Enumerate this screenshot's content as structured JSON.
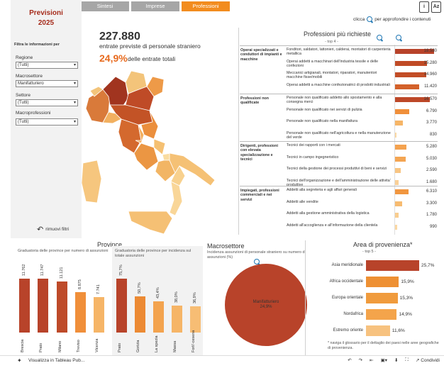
{
  "tabs": [
    {
      "label": "Sintesi",
      "active": false
    },
    {
      "label": "Imprese",
      "active": false
    },
    {
      "label": "Professioni",
      "active": true
    }
  ],
  "header_icons": [
    "info-icon",
    "glossary-icon"
  ],
  "hint": {
    "left": "clicca",
    "right": "per approfondire i contenuti"
  },
  "sidebar": {
    "title": "Previsioni",
    "year": "2025",
    "filter_heading": "Filtra le informazioni per",
    "filters": [
      {
        "label": "Regione",
        "value": "(Tutti)"
      },
      {
        "label": "Macrosettore",
        "value": "Manifatturiero"
      },
      {
        "label": "Settore",
        "value": "(Tutti)"
      },
      {
        "label": "Macroprofessioni",
        "value": "(Tutti)"
      }
    ],
    "reset_label": "rimuovi filtri"
  },
  "headline": {
    "total": "227.880",
    "total_label": "entrate previste di personale straniero",
    "share": "24,9%",
    "share_label": "delle entrate totali"
  },
  "professioni": {
    "title": "Professioni più richieste",
    "subtitle": "- top 4 -",
    "max": 18580,
    "groups": [
      {
        "name": "Operai specializzati e conduttori di impianti e macchine",
        "rows": [
          {
            "label": "Fonditori, saldatori, lattonieri, calderai, montatori di carpenteria metallica",
            "value": 18580,
            "display": "18.580",
            "color": "#b8432a"
          },
          {
            "label": "Operai addetti a macchinari dell'industria tessile e delle confezioni",
            "value": 15280,
            "display": "15.280",
            "color": "#c04b26"
          },
          {
            "label": "Meccanici artigianali, montatori, riparatori, manutentori macchine fisse/mobili",
            "value": 14960,
            "display": "14.960",
            "color": "#c24d26"
          },
          {
            "label": "Operai addetti a macchine confezionatrici di prodotti industriali",
            "value": 11420,
            "display": "11.420",
            "color": "#d3612a"
          }
        ]
      },
      {
        "name": "Professioni non qualificate",
        "rows": [
          {
            "label": "Personale non qualificato addetto allo spostamento e alla consegna merci",
            "value": 16570,
            "display": "16.570",
            "color": "#bd4828"
          },
          {
            "label": "Personale non qualificato nei servizi di pulizia",
            "value": 6790,
            "display": "6.790",
            "color": "#f08f3a"
          },
          {
            "label": "Personale non qualificato nella manifattura",
            "value": 3770,
            "display": "3.770",
            "color": "#f6b567"
          },
          {
            "label": "Personale non qualificato nell'agricoltura e nella manutenzione del verde",
            "value": 830,
            "display": "830",
            "color": "#fbd9a5"
          }
        ]
      },
      {
        "name": "Dirigenti, professioni con elevata specializzazione e tecnici",
        "rows": [
          {
            "label": "Tecnici dei rapporti con i mercati",
            "value": 5280,
            "display": "5.280",
            "color": "#f4a24f"
          },
          {
            "label": "Tecnici in campo ingegneristico",
            "value": 5030,
            "display": "5.030",
            "color": "#f4a552"
          },
          {
            "label": "Tecnici della gestione dei processi produttivi di beni e servizi",
            "value": 2590,
            "display": "2.590",
            "color": "#f8c582"
          },
          {
            "label": "Tecnici dell'organizzazione e dell'amministrazione delle attivita' produttive",
            "value": 1680,
            "display": "1.680",
            "color": "#fad0970"
          }
        ]
      },
      {
        "name": "Impiegati, professioni commerciali e nei servizi",
        "rows": [
          {
            "label": "Addetti alla segreteria e agli affari generali",
            "value": 6310,
            "display": "6.310",
            "color": "#f1963f"
          },
          {
            "label": "Addetti alle vendite",
            "value": 3300,
            "display": "3.300",
            "color": "#f7bb70"
          },
          {
            "label": "Addetti alla gestione amministrativa della logistica",
            "value": 1780,
            "display": "1.780",
            "color": "#f9cd8f"
          },
          {
            "label": "Addetti all'accoglienza e all'informazione della clientela",
            "value": 990,
            "display": "990",
            "color": "#fbd8a3"
          }
        ]
      }
    ]
  },
  "province": {
    "title": "Province",
    "left_subtitle": "Graduatoria delle province per numero di assunzioni",
    "right_subtitle": "Graduatoria delle province per incidenza sul totale assunzioni",
    "chart_data": [
      {
        "type": "bar",
        "categories": [
          "Brescia",
          "Prato",
          "Milano",
          "Treviso",
          "Vicenza"
        ],
        "values": [
          11762,
          11747,
          11121,
          8875,
          7741
        ],
        "labels": [
          "11.762",
          "11.747",
          "11.121",
          "8.875",
          "7.741"
        ],
        "colors": [
          "#b8432a",
          "#b8432a",
          "#be4a29",
          "#f08f3a",
          "#f6b567"
        ]
      },
      {
        "type": "bar",
        "categories": [
          "Prato",
          "Gorizia",
          "La spezia",
          "Massa",
          "Forli'-cesena"
        ],
        "values": [
          75.7,
          50.7,
          43.4,
          38.0,
          36.9
        ],
        "labels": [
          "75,7%",
          "50,7%",
          "43,4%",
          "38,0%",
          "36,9%"
        ],
        "colors": [
          "#b8432a",
          "#ec8a34",
          "#f3a34e",
          "#f6b567",
          "#f7bd74"
        ]
      }
    ]
  },
  "macrosettore": {
    "title": "Macrosettore",
    "subtitle": "Incidenza assunzioni di personale straniero su numero di assunzioni (%)",
    "chart_data": {
      "type": "pie",
      "slices": [
        {
          "name": "Manifatturiero",
          "value": 24.9,
          "label": "24,9%"
        }
      ],
      "color": "#b8432a"
    }
  },
  "area": {
    "title": "Area di provenienza*",
    "subtitle": "- top 5 -",
    "note": "* naviga il glossario per il dettaglio dei paesi nelle aree geografiche di provenienza.",
    "chart_data": {
      "type": "bar",
      "orientation": "horizontal",
      "categories": [
        "Asia meridionale",
        "Africa occidentale",
        "Europa orientale",
        "Nordafrica",
        "Estremo oriente"
      ],
      "values": [
        25.7,
        15.9,
        15.3,
        14.9,
        11.6
      ],
      "labels": [
        "25,7%",
        "15,9%",
        "15,3%",
        "14,9%",
        "11,6%"
      ],
      "colors": [
        "#b8432a",
        "#ee9033",
        "#f09b3d",
        "#f4a44b",
        "#f7c27f"
      ]
    }
  },
  "footer": {
    "left": "Visualizza in Tableau Pub...",
    "share": "Condividi"
  }
}
